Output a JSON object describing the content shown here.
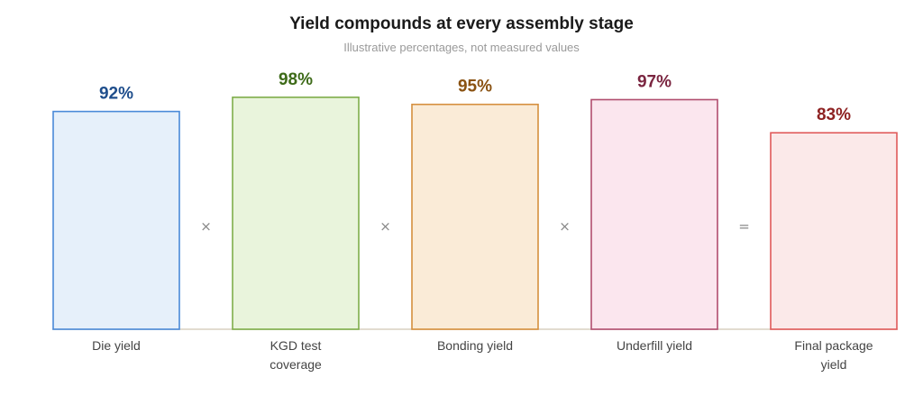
{
  "chart_data": {
    "type": "bar",
    "title": "Yield compounds at every assembly stage",
    "subtitle": "Illustrative percentages, not measured values",
    "categories": [
      "Die yield",
      "KGD test coverage",
      "Bonding yield",
      "Underfill yield",
      "Final package yield"
    ],
    "category_lines": [
      [
        "Die yield"
      ],
      [
        "KGD test",
        "coverage"
      ],
      [
        "Bonding yield"
      ],
      [
        "Underfill yield"
      ],
      [
        "Final package",
        "yield"
      ]
    ],
    "values": [
      92,
      98,
      95,
      97,
      83
    ],
    "value_labels": [
      "92%",
      "98%",
      "95%",
      "97%",
      "83%"
    ],
    "operators": [
      "×",
      "×",
      "×",
      "="
    ],
    "ylim": [
      0,
      100
    ],
    "grid": false,
    "colors": {
      "fills": [
        "#e6f0fa",
        "#e9f4dc",
        "#faebd7",
        "#fbe6ee",
        "#fbe9e9"
      ],
      "strokes": [
        "#4a8ad8",
        "#7fad4a",
        "#d58f3e",
        "#b14d6e",
        "#e05a5a"
      ],
      "labels": [
        "#1f4e8c",
        "#3e6b19",
        "#8a5212",
        "#7a2540",
        "#8e2222"
      ],
      "baseline": "#d8d0c0",
      "operator": "#888888"
    }
  }
}
